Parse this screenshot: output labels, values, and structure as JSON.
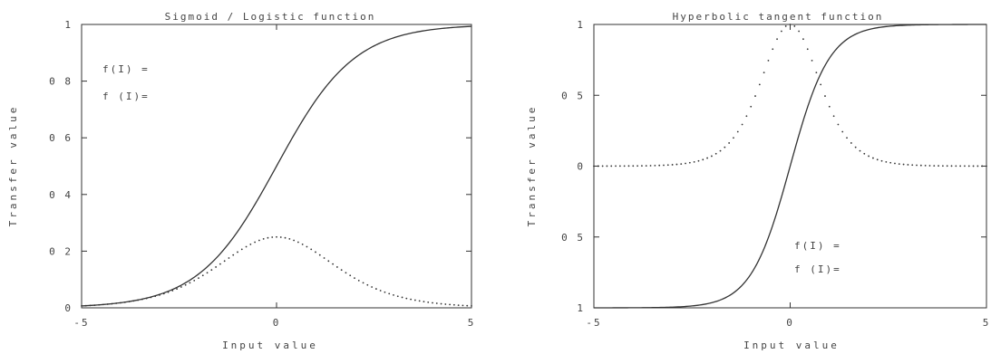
{
  "chart_data": [
    {
      "type": "line",
      "title": "Sigmoid / Logistic function",
      "xlabel": "Input value",
      "ylabel": "Transfer value",
      "xlim": [
        -5,
        5
      ],
      "ylim": [
        0,
        1
      ],
      "xticks": [
        -5,
        0,
        5
      ],
      "yticks": [
        0,
        0.2,
        0.4,
        0.6,
        0.8,
        1
      ],
      "xtick_labels": [
        "-5",
        "0",
        "5"
      ],
      "ytick_labels": [
        "0",
        "0 2",
        "0 4",
        "0 6",
        "0 8",
        "1"
      ],
      "grid": false,
      "annotations": [
        "f(I) =",
        "f (I)="
      ],
      "series": [
        {
          "function": "logistic",
          "style": "solid",
          "x": [
            -5,
            -4,
            -3,
            -2,
            -1,
            0,
            1,
            2,
            3,
            4,
            5
          ],
          "y": [
            0.007,
            0.018,
            0.047,
            0.119,
            0.269,
            0.5,
            0.731,
            0.881,
            0.953,
            0.982,
            0.993
          ]
        },
        {
          "function": "logistic_derivative",
          "style": "dotted",
          "x": [
            -5,
            -4,
            -3,
            -2,
            -1,
            0,
            1,
            2,
            3,
            4,
            5
          ],
          "y": [
            0.007,
            0.018,
            0.045,
            0.105,
            0.197,
            0.25,
            0.197,
            0.105,
            0.045,
            0.018,
            0.007
          ]
        }
      ]
    },
    {
      "type": "line",
      "title": "Hyperbolic tangent function",
      "xlabel": "Input value",
      "ylabel": "Transfer value",
      "xlim": [
        -5,
        5
      ],
      "ylim": [
        -1,
        1
      ],
      "xticks": [
        -5,
        0,
        5
      ],
      "yticks": [
        -1,
        -0.5,
        0,
        0.5,
        1
      ],
      "xtick_labels": [
        "-5",
        "0",
        "5"
      ],
      "ytick_labels": [
        "1",
        "0 5",
        "0",
        "0 5",
        "1"
      ],
      "grid": false,
      "annotations": [
        "f(I) =",
        "f (I)="
      ],
      "series": [
        {
          "function": "tanh",
          "style": "solid",
          "x": [
            -5,
            -4,
            -3,
            -2,
            -1,
            0,
            1,
            2,
            3,
            4,
            5
          ],
          "y": [
            -1.0,
            -0.999,
            -0.995,
            -0.964,
            -0.762,
            0,
            0.762,
            0.964,
            0.995,
            0.999,
            1.0
          ]
        },
        {
          "function": "tanh_derivative",
          "style": "dotted",
          "x": [
            -5,
            -4,
            -3,
            -2,
            -1,
            0,
            1,
            2,
            3,
            4,
            5
          ],
          "y": [
            0.0002,
            0.001,
            0.01,
            0.071,
            0.42,
            1.0,
            0.42,
            0.071,
            0.01,
            0.001,
            0.0002
          ]
        }
      ]
    }
  ]
}
